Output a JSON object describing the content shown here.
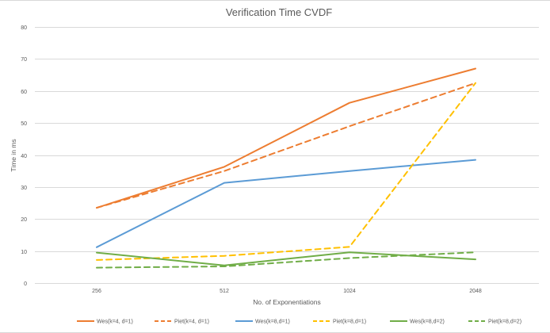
{
  "chart_data": {
    "type": "line",
    "title": "Verification Time CVDF",
    "xlabel": "No. of Exponentiations",
    "ylabel": "Time in ms",
    "categories": [
      "256",
      "512",
      "1024",
      "2048"
    ],
    "ylim": [
      0,
      80
    ],
    "yticks": [
      0,
      10,
      20,
      30,
      40,
      50,
      60,
      70,
      80
    ],
    "grid": true,
    "legend_position": "bottom",
    "series": [
      {
        "name": "Wes(k=4, d=1)",
        "values": [
          23.5,
          36.3,
          56.3,
          67.0
        ],
        "color": "#ed7d31",
        "dashed": false
      },
      {
        "name": "Piet(k=4, d=1)",
        "values": [
          23.5,
          35.0,
          49.0,
          62.5
        ],
        "color": "#ed7d31",
        "dashed": true
      },
      {
        "name": "Wes(k=8,d=1)",
        "values": [
          11.2,
          31.3,
          35.0,
          38.5
        ],
        "color": "#5b9bd5",
        "dashed": false
      },
      {
        "name": "Piet(k=8,d=1)",
        "values": [
          7.2,
          8.5,
          11.3,
          62.5
        ],
        "color": "#ffc000",
        "dashed": true
      },
      {
        "name": "Wes(k=8,d=2)",
        "values": [
          9.5,
          5.5,
          9.6,
          7.4
        ],
        "color": "#70ad47",
        "dashed": false
      },
      {
        "name": "Piet(k=8,d=2)",
        "values": [
          4.8,
          5.2,
          7.8,
          9.6
        ],
        "color": "#70ad47",
        "dashed": true
      }
    ]
  }
}
